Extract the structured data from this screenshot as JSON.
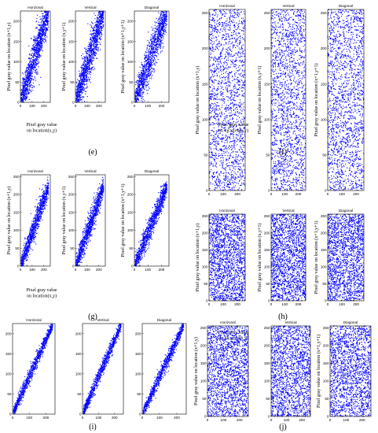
{
  "chart_data": [
    {
      "id": "e",
      "type": "scatter",
      "mode": "correlated",
      "spread": 26,
      "density": 1300,
      "subplots": [
        {
          "title": "Horizonal",
          "xlabel": "Pixel  gray  value\non location(x,y)",
          "ylabel": "Pixel gray value on location (x+1,y)",
          "xticks": [
            0,
            100,
            200
          ],
          "yticks": [
            0,
            50,
            100,
            150,
            200
          ],
          "xlim": [
            0,
            255
          ],
          "ylim": [
            0,
            225
          ]
        },
        {
          "title": "Vertical",
          "xlabel": "",
          "ylabel": "Pixel gray value on location (x,y+1)",
          "xticks": [
            0,
            100,
            200
          ],
          "yticks": [
            0,
            50,
            100,
            150,
            200
          ],
          "xlim": [
            0,
            255
          ],
          "ylim": [
            0,
            225
          ]
        },
        {
          "title": "Diagonal",
          "xlabel": "",
          "ylabel": "Pixel gray value on location (x+1,y+1)",
          "xticks": [
            0,
            100,
            200
          ],
          "yticks": [
            0,
            50,
            100,
            150,
            200
          ],
          "xlim": [
            0,
            255
          ],
          "ylim": [
            0,
            225
          ]
        }
      ],
      "panel_label": "(e)"
    },
    {
      "id": "f",
      "type": "scatter",
      "mode": "uniform",
      "density": 1800,
      "subplots": [
        {
          "title": "Horizonal",
          "xlabel": "Pixel gray value\non location(x,y)",
          "ylabel": "Pixel gray value on location (x+1,y)",
          "xticks": [
            0,
            100,
            200
          ],
          "yticks": [
            0,
            50,
            100,
            150,
            200,
            250
          ],
          "xlim": [
            0,
            255
          ],
          "ylim": [
            0,
            255
          ]
        },
        {
          "title": "Vertical",
          "xlabel": "",
          "ylabel": "Pixel gray value on location (x,y+1)",
          "xticks": [
            0,
            100,
            200
          ],
          "yticks": [
            0,
            50,
            100,
            150,
            200,
            250
          ],
          "xlim": [
            0,
            255
          ],
          "ylim": [
            0,
            255
          ]
        },
        {
          "title": "Diagonal",
          "xlabel": "",
          "ylabel": "Pixel gray value on location (x+1,y+1)",
          "xticks": [
            0,
            100,
            200
          ],
          "yticks": [
            0,
            50,
            100,
            150,
            200,
            250
          ],
          "xlim": [
            0,
            255
          ],
          "ylim": [
            0,
            255
          ]
        }
      ],
      "panel_label": "(f)"
    },
    {
      "id": "g",
      "type": "scatter",
      "mode": "correlated",
      "spread": 18,
      "density": 1100,
      "subplots": [
        {
          "title": "Horizonal",
          "xlabel": "Pixel  gray  value\non location(x,y)",
          "ylabel": "Pixel gray value on location (x+1,y)",
          "xticks": [
            0,
            100,
            200
          ],
          "yticks": [
            0,
            50,
            100,
            150,
            200,
            250
          ],
          "xlim": [
            0,
            255
          ],
          "ylim": [
            0,
            255
          ]
        },
        {
          "title": "Vertical",
          "xlabel": "",
          "ylabel": "Pixel gray value on location (x,y+1)",
          "xticks": [
            0,
            100,
            200
          ],
          "yticks": [
            0,
            50,
            100,
            150,
            200,
            250
          ],
          "xlim": [
            0,
            255
          ],
          "ylim": [
            0,
            255
          ]
        },
        {
          "title": "Diagonal",
          "xlabel": "",
          "ylabel": "Pixel gray value on location (x+1,y+1)",
          "xticks": [
            0,
            100,
            200
          ],
          "yticks": [
            0,
            50,
            100,
            150,
            200,
            250
          ],
          "xlim": [
            0,
            255
          ],
          "ylim": [
            0,
            255
          ]
        }
      ],
      "panel_label": "(g)"
    },
    {
      "id": "h",
      "type": "scatter",
      "mode": "uniform",
      "density": 1800,
      "subplots": [
        {
          "title": "Horizonal",
          "xlabel": "Pixel gray value\non location(x,y)",
          "ylabel": "Pixel gray value on location (x+1,y)",
          "xticks": [
            0,
            100,
            200
          ],
          "yticks": [
            0,
            50,
            100,
            150,
            200,
            250
          ],
          "xlim": [
            0,
            255
          ],
          "ylim": [
            0,
            255
          ]
        },
        {
          "title": "Vertical",
          "xlabel": "",
          "ylabel": "Pixel gray value on location (x,y+1)",
          "xticks": [
            0,
            100,
            200
          ],
          "yticks": [
            0,
            50,
            100,
            150,
            200,
            250
          ],
          "xlim": [
            0,
            255
          ],
          "ylim": [
            0,
            255
          ]
        },
        {
          "title": "Diagonal",
          "xlabel": "",
          "ylabel": "Pixel gray value on location (x+1,y+1)",
          "xticks": [
            0,
            100,
            200
          ],
          "yticks": [
            0,
            50,
            100,
            150,
            200,
            250
          ],
          "xlim": [
            0,
            255
          ],
          "ylim": [
            0,
            255
          ]
        }
      ],
      "panel_label": "(h)"
    },
    {
      "id": "i",
      "type": "scatter",
      "mode": "correlated",
      "spread": 10,
      "density": 1000,
      "subplots": [
        {
          "title": "Horizonal",
          "xlabel": "",
          "ylabel": "",
          "xticks": [
            0,
            100,
            200
          ],
          "yticks": [
            0,
            50,
            100,
            150,
            200
          ],
          "xlim": [
            0,
            255
          ],
          "ylim": [
            0,
            225
          ]
        },
        {
          "title": "Vertical",
          "xlabel": "",
          "ylabel": "",
          "xticks": [
            0,
            100,
            200
          ],
          "yticks": [
            0,
            50,
            100,
            150,
            200
          ],
          "xlim": [
            0,
            255
          ],
          "ylim": [
            0,
            225
          ]
        },
        {
          "title": "Diagonal",
          "xlabel": "",
          "ylabel": "",
          "xticks": [
            0,
            100,
            200
          ],
          "yticks": [
            0,
            50,
            100,
            150,
            200
          ],
          "xlim": [
            0,
            255
          ],
          "ylim": [
            0,
            225
          ]
        }
      ],
      "panel_label": "(i)"
    },
    {
      "id": "j",
      "type": "scatter",
      "mode": "uniform",
      "density": 1800,
      "subplots": [
        {
          "title": "Horizonal",
          "xlabel": "",
          "ylabel": "Pixel gray value on location (x+1,y)",
          "xticks": [
            0,
            100,
            200
          ],
          "yticks": [
            0,
            50,
            100,
            150,
            200,
            250
          ],
          "xlim": [
            0,
            255
          ],
          "ylim": [
            0,
            255
          ]
        },
        {
          "title": "Vertical",
          "xlabel": "",
          "ylabel": "",
          "xticks": [
            0,
            100,
            200
          ],
          "yticks": [
            0,
            50,
            100,
            150,
            200,
            250
          ],
          "xlim": [
            0,
            255
          ],
          "ylim": [
            0,
            255
          ]
        },
        {
          "title": "Diagonal",
          "xlabel": "",
          "ylabel": "Pixel gray value on location (x+1,y+1)",
          "xticks": [
            0,
            100,
            200
          ],
          "yticks": [
            0,
            50,
            100,
            150,
            200,
            250
          ],
          "xlim": [
            0,
            255
          ],
          "ylim": [
            0,
            255
          ]
        }
      ],
      "panel_label": "(j)"
    }
  ],
  "colors": {
    "points": "#0000ff",
    "axes": "#000000",
    "background": "#ffffff"
  }
}
